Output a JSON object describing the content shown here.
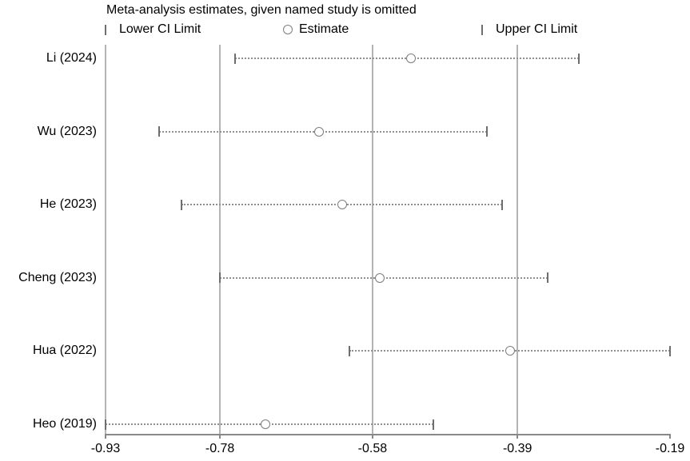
{
  "title": "Meta-analysis estimates, given named study is omitted",
  "legend": {
    "lower_label": "Lower CI Limit",
    "estimate_label": "Estimate",
    "upper_label": "Upper CI Limit"
  },
  "colors": {
    "background": "#ffffff",
    "text": "#000000",
    "gridline": "#b4b4b4",
    "axis": "#888888",
    "ci_line": "#8f8f8f",
    "ci_marker": "#6e6e6e",
    "estimate_marker": "#7d7d7d"
  },
  "chart_data": {
    "type": "scatter",
    "subtype": "leave-one-out-forest-plot",
    "title": "Meta-analysis estimates, given named study is omitted",
    "legend_entries": [
      "Lower CI Limit",
      "Estimate",
      "Upper CI Limit"
    ],
    "xlim": [
      -0.93,
      -0.19
    ],
    "x_ticks": [
      -0.93,
      -0.78,
      -0.58,
      -0.39,
      -0.19
    ],
    "x_tick_labels": [
      "-0.93",
      "-0.78",
      "-0.58",
      "-0.39",
      "-0.19"
    ],
    "gridlines_x": [
      -0.78,
      -0.58,
      -0.39
    ],
    "left_spine_x": -0.93,
    "grid": true,
    "legend_position": "top",
    "studies": [
      {
        "label": "Li (2024)",
        "lower": -0.76,
        "estimate": -0.53,
        "upper": -0.31
      },
      {
        "label": "Wu (2023)",
        "lower": -0.86,
        "estimate": -0.65,
        "upper": -0.43
      },
      {
        "label": "He (2023)",
        "lower": -0.83,
        "estimate": -0.62,
        "upper": -0.41
      },
      {
        "label": "Cheng (2023)",
        "lower": -0.78,
        "estimate": -0.57,
        "upper": -0.35
      },
      {
        "label": "Hua (2022)",
        "lower": -0.61,
        "estimate": -0.4,
        "upper": -0.19
      },
      {
        "label": "Heo (2019)",
        "lower": -0.93,
        "estimate": -0.72,
        "upper": -0.5
      }
    ]
  }
}
